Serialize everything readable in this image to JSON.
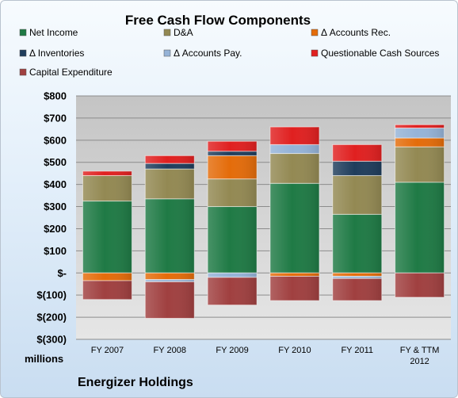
{
  "chart_data": {
    "type": "bar",
    "stacked": true,
    "title": "Free Cash Flow Components",
    "ylabel_unit": "millions",
    "company": "Energizer Holdings",
    "categories": [
      "FY 2007",
      "FY 2008",
      "FY 2009",
      "FY 2010",
      "FY 2011",
      "FY & TTM 2012"
    ],
    "ylim": [
      -300,
      800
    ],
    "yticks": [
      800,
      700,
      600,
      500,
      400,
      300,
      200,
      100,
      0,
      -100,
      -200,
      -300
    ],
    "ytick_labels": [
      "$800",
      "$700",
      "$600",
      "$500",
      "$400",
      "$300",
      "$200",
      "$100",
      "$-",
      "$(100)",
      "$(200)",
      "$(300)"
    ],
    "grid": true,
    "legend_position": "top",
    "series": [
      {
        "name": "Net Income",
        "color": "#1f7a45",
        "values": [
          325,
          335,
          300,
          405,
          265,
          410
        ]
      },
      {
        "name": "D&A",
        "color": "#938953",
        "values": [
          115,
          135,
          125,
          135,
          175,
          160
        ]
      },
      {
        "name": "Δ Accounts Rec.",
        "color": "#e46c0a",
        "values": [
          -35,
          -30,
          105,
          -15,
          -15,
          40
        ]
      },
      {
        "name": "Δ Inventories",
        "color": "#1f3d5c",
        "values": [
          0,
          25,
          20,
          0,
          65,
          0
        ]
      },
      {
        "name": "Δ Accounts Pay.",
        "color": "#95b3d7",
        "values": [
          0,
          -10,
          -20,
          40,
          -10,
          45
        ]
      },
      {
        "name": "Questionable Cash Sources",
        "color": "#e02020",
        "values": [
          20,
          35,
          45,
          80,
          75,
          15
        ]
      },
      {
        "name": "Capital Expenditure",
        "color": "#a04040",
        "values": [
          -85,
          -165,
          -125,
          -110,
          -100,
          -110
        ]
      }
    ],
    "category_labels": [
      [
        "FY 2007"
      ],
      [
        "FY 2008"
      ],
      [
        "FY 2009"
      ],
      [
        "FY 2010"
      ],
      [
        "FY 2011"
      ],
      [
        "FY & TTM",
        "2012"
      ]
    ]
  }
}
